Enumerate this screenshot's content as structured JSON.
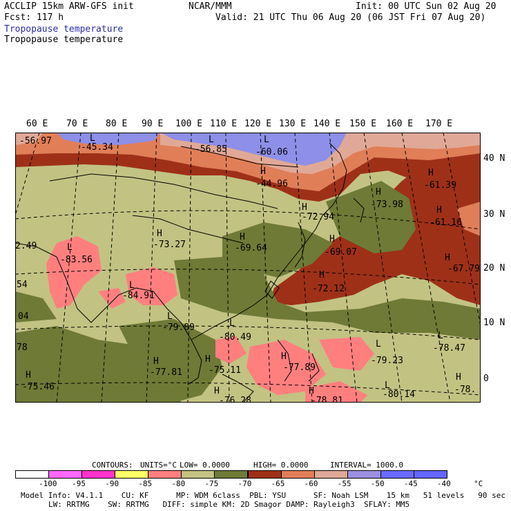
{
  "header": {
    "model": "ACCLIP 15km ARW-GFS init",
    "org": "NCAR/MMM",
    "init": "Init: 00 UTC Sun 02 Aug 20",
    "fcst": "Fcst: 117 h",
    "valid": "Valid: 21 UTC Thu 06 Aug 20 (06 JST Fri 07 Aug 20)",
    "field1": "Tropopause temperature",
    "field2": "Tropopause temperature"
  },
  "map": {
    "lon_labels": [
      "60 E",
      "70 E",
      "80 E",
      "90 E",
      "100 E",
      "110 E",
      "120 E",
      "130 E",
      "140 E",
      "150 E",
      "160 E",
      "170 E"
    ],
    "lat_labels": [
      "40 N",
      "30 N",
      "20 N",
      "10 N",
      "0"
    ],
    "pressure_centers": [
      {
        "type": "L",
        "value": "-83.56"
      },
      {
        "type": "L",
        "value": "-84.91"
      },
      {
        "type": "H",
        "value": "-73.27"
      },
      {
        "type": "H",
        "value": "-69.64"
      },
      {
        "type": "H",
        "value": "-69.07"
      },
      {
        "type": "H",
        "value": "-72.12"
      },
      {
        "type": "H",
        "value": "-73.98"
      },
      {
        "type": "H",
        "value": "-72.94"
      },
      {
        "type": "H",
        "value": "-44.96"
      },
      {
        "type": "L",
        "value": "-60.06"
      },
      {
        "type": "L",
        "value": "-56.85"
      },
      {
        "type": "L",
        "value": "-45.34"
      },
      {
        "type": "H",
        "value": "-61.39"
      },
      {
        "type": "H",
        "value": "-61.16"
      },
      {
        "type": "H",
        "value": "-67.79"
      },
      {
        "type": "L",
        "value": "-79.89"
      },
      {
        "type": "L",
        "value": "-80.49"
      },
      {
        "type": "H",
        "value": "-77.81"
      },
      {
        "type": "H",
        "value": "-75.11"
      },
      {
        "type": "H",
        "value": "-77.89"
      },
      {
        "type": "L",
        "value": "-79.23"
      },
      {
        "type": "L",
        "value": "-78.47"
      },
      {
        "type": "L",
        "value": "-80.14"
      },
      {
        "type": "H",
        "value": "-78."
      },
      {
        "type": "H",
        "value": "-75.46"
      },
      {
        "type": "H",
        "value": "-76.28"
      },
      {
        "type": "H",
        "value": "-78.81"
      }
    ],
    "edge_values": [
      "-56.97",
      "2.49",
      "54",
      "04",
      "78"
    ]
  },
  "contours": {
    "label": "CONTOURS:",
    "units": "UNITS=°C",
    "low": "LOW= 0.0000",
    "high": "HIGH= 0.0000",
    "interval": "INTERVAL= 1000.0"
  },
  "colorbar": {
    "ticks": [
      "-100",
      "-95",
      "-90",
      "-85",
      "-80",
      "-75",
      "-70",
      "-65",
      "-60",
      "-55",
      "-50",
      "-45",
      "-40"
    ],
    "unit": "°C",
    "colors": [
      "#ffffff",
      "#ff66ff",
      "#ff33cc",
      "#ffff66",
      "#ff7f7f",
      "#c2c283",
      "#6e7a36",
      "#9e3018",
      "#e07e58",
      "#e0a896",
      "#9c8fe0",
      "#6a6aff",
      "#6464ff"
    ]
  },
  "footer": {
    "line1": "Model Info: V4.1.1    CU: KF      MP: WDM 6class  PBL: YSU      SF: Noah LSM    15 km   51 levels   90 sec",
    "line2": "LW: RRTMG    SW: RRTMG   DIFF: simple KM: 2D Smagor DAMP: Rayleigh3  SFLAY: MM5"
  }
}
